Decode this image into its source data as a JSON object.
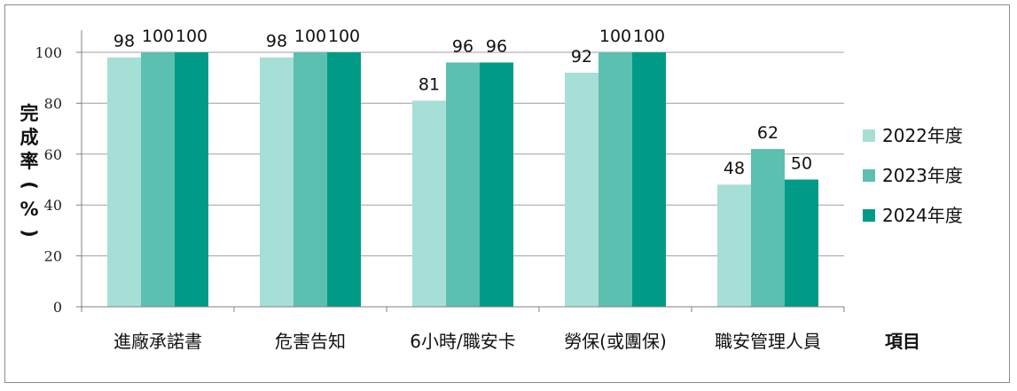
{
  "chart_data": {
    "type": "bar",
    "categories": [
      "進廠承諾書",
      "危害告知",
      "6小時/職安卡",
      "勞保(或團保)",
      "職安管理人員"
    ],
    "series": [
      {
        "name": "2022年度",
        "values": [
          98,
          98,
          81,
          92,
          48
        ],
        "color": "#a6dfd6"
      },
      {
        "name": "2023年度",
        "values": [
          100,
          100,
          96,
          100,
          62
        ],
        "color": "#5cc0b0"
      },
      {
        "name": "2024年度",
        "values": [
          100,
          100,
          96,
          100,
          50
        ],
        "color": "#009b86"
      }
    ],
    "ylabel_chars": [
      "完",
      "成",
      "率",
      "(",
      "%",
      ")"
    ],
    "xlabel": "項目",
    "ylim": [
      0,
      100
    ],
    "yticks": [
      0,
      20,
      40,
      60,
      80,
      100
    ],
    "grid": true,
    "legend_position": "right"
  }
}
